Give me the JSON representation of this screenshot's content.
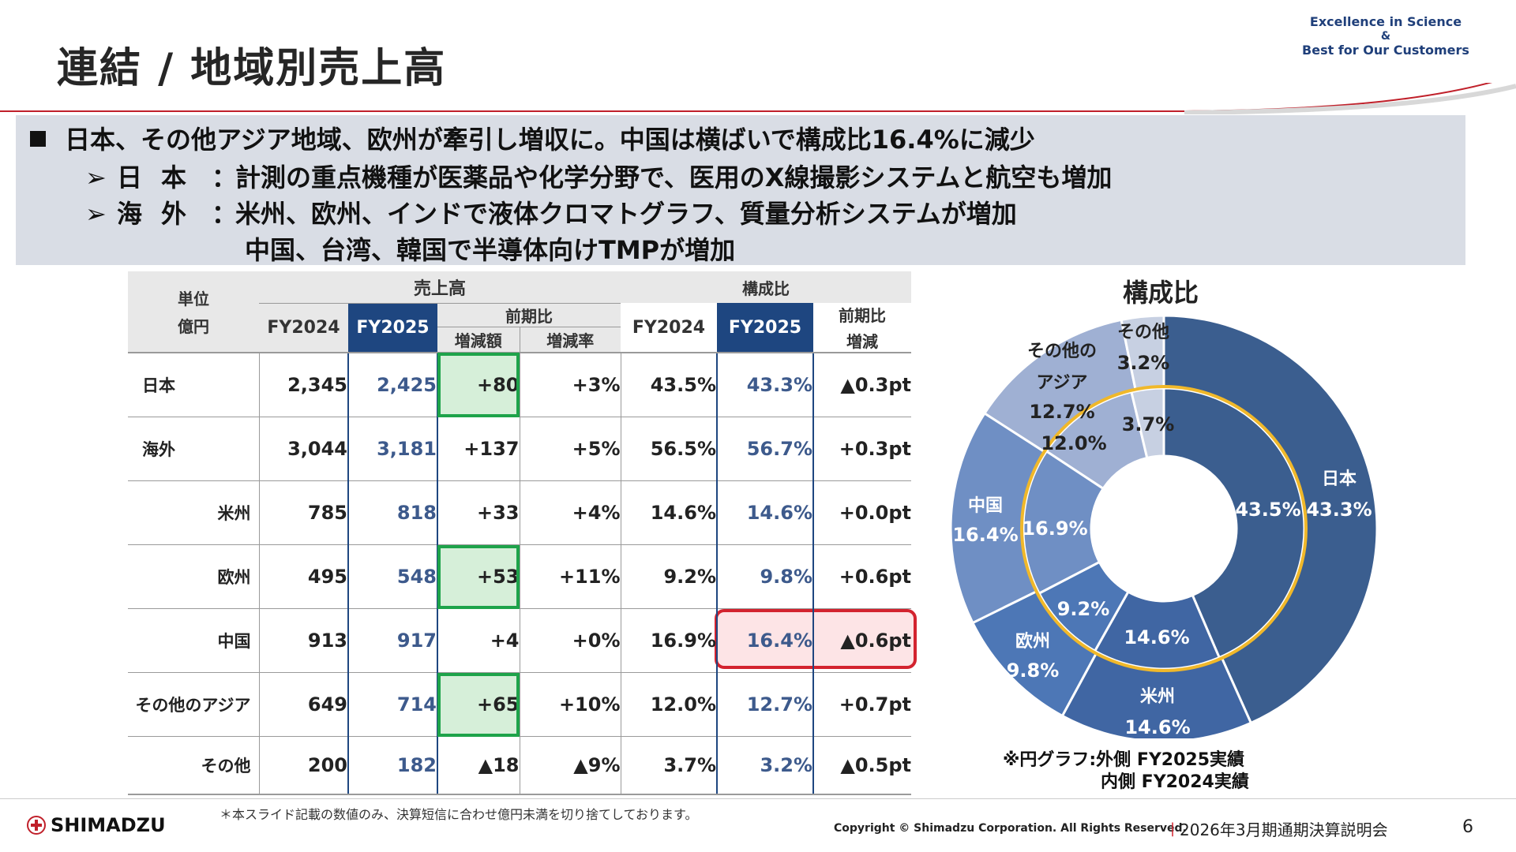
{
  "title": "連結 / 地域別売上高",
  "tagline": {
    "line1": "Excellence in Science",
    "amp": "&",
    "line2": "Best for Our Customers"
  },
  "summary": {
    "main": "日本、その他アジア地域、欧州が牽引し増収に。中国は横ばいで構成比16.4%に減少",
    "items": [
      {
        "label": "日本",
        "text": "計測の重点機種が医薬品や化学分野で、医用のX線撮影システムと航空も増加"
      },
      {
        "label": "海外",
        "text": "米州、欧州、インドで液体クロマトグラフ、質量分析システムが増加"
      }
    ],
    "continuation": "中国、台湾、韓国で半導体向けTMPが増加",
    "arrow": "➢",
    "colon": "："
  },
  "table": {
    "unit_line1": "単位",
    "unit_line2": "億円",
    "group_sales": "売上高",
    "group_comp": "構成比",
    "col_fy2024": "FY2024",
    "col_fy2025": "FY2025",
    "col_yoy": "前期比",
    "col_diff": "増減額",
    "col_rate": "増減率",
    "col_comp_yoy1": "前期比",
    "col_comp_yoy2": "増減",
    "rows": [
      {
        "name": "日本",
        "fy24": "2,345",
        "fy25": "2,425",
        "diff": "+80",
        "rate": "+3%",
        "c24": "43.5%",
        "c25": "43.3%",
        "cyoy": "▲0.3pt"
      },
      {
        "name": "海外",
        "fy24": "3,044",
        "fy25": "3,181",
        "diff": "+137",
        "rate": "+5%",
        "c24": "56.5%",
        "c25": "56.7%",
        "cyoy": "+0.3pt"
      },
      {
        "name": "米州",
        "fy24": "785",
        "fy25": "818",
        "diff": "+33",
        "rate": "+4%",
        "c24": "14.6%",
        "c25": "14.6%",
        "cyoy": "+0.0pt"
      },
      {
        "name": "欧州",
        "fy24": "495",
        "fy25": "548",
        "diff": "+53",
        "rate": "+11%",
        "c24": "9.2%",
        "c25": "9.8%",
        "cyoy": "+0.6pt"
      },
      {
        "name": "中国",
        "fy24": "913",
        "fy25": "917",
        "diff": "+4",
        "rate": "+0%",
        "c24": "16.9%",
        "c25": "16.4%",
        "cyoy": "▲0.6pt"
      },
      {
        "name": "その他のアジア",
        "fy24": "649",
        "fy25": "714",
        "diff": "+65",
        "rate": "+10%",
        "c24": "12.0%",
        "c25": "12.7%",
        "cyoy": "+0.7pt"
      },
      {
        "name": "その他",
        "fy24": "200",
        "fy25": "182",
        "diff": "▲18",
        "rate": "▲9%",
        "c24": "3.7%",
        "c25": "3.2%",
        "cyoy": "▲0.5pt"
      }
    ]
  },
  "chart_data": {
    "type": "pie",
    "title": "構成比",
    "series": [
      {
        "name": "FY2025実績",
        "ring": "outer",
        "labels": [
          "日本",
          "米州",
          "欧州",
          "中国",
          "その他のアジア",
          "その他"
        ],
        "values": [
          43.3,
          14.6,
          9.8,
          16.4,
          12.7,
          3.2
        ]
      },
      {
        "name": "FY2024実績",
        "ring": "inner",
        "labels": [
          "日本",
          "米州",
          "欧州",
          "中国",
          "その他のアジア",
          "その他"
        ],
        "values": [
          43.5,
          14.6,
          9.2,
          16.9,
          12.0,
          3.7
        ]
      }
    ],
    "outer_labels": [
      "日本",
      "米州",
      "欧州",
      "中国",
      "その他の\nアジア",
      "その他"
    ],
    "outer_value_labels": [
      "43.3%",
      "14.6%",
      "9.8%",
      "16.4%",
      "12.7%",
      "3.2%"
    ],
    "inner_value_labels": [
      "43.5%",
      "14.6%",
      "9.2%",
      "16.9%",
      "12.0%",
      "3.7%"
    ],
    "colors": [
      "#3b5e8f",
      "#4066a3",
      "#4d77b6",
      "#6f8fc4",
      "#9fb0d3",
      "#c7d0e2"
    ],
    "inner_ring_color": "#f0b82a",
    "note_line1": "※円グラフ:外側 FY2025実績",
    "note_line2": "内側 FY2024実績"
  },
  "footer": {
    "footnote": "＊本スライド記載の数値のみ、決算短信に合わせ億円未満を切り捨てしております。",
    "logo_text": "SHIMADZU",
    "copyright": "Copyright © Shimadzu Corporation. All Rights Reserved.",
    "separator": "|",
    "event": "2026年3月期通期決算説明会",
    "page": "6"
  }
}
